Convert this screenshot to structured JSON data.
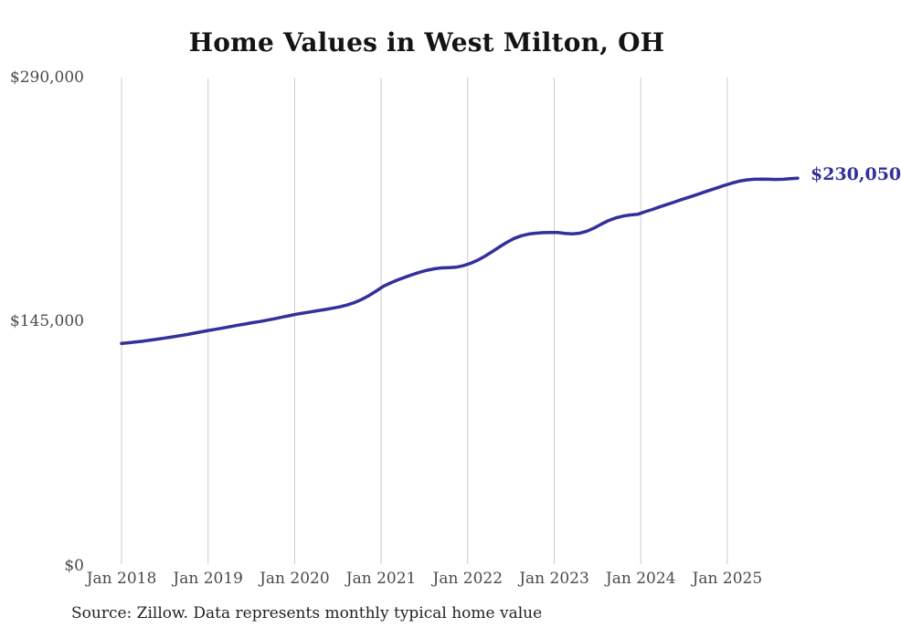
{
  "page": {
    "title": "Home Values in West Milton, OH",
    "source_note": "Source: Zillow. Data represents monthly typical home value"
  },
  "chart_data": {
    "type": "line",
    "title": "Home Values in West Milton, OH",
    "series_name": "Monthly typical home value",
    "line_color": "#34309b",
    "grid_color": "#cccccc",
    "end_label": "$230,050",
    "end_value": 230050,
    "ylim": [
      0,
      290000
    ],
    "grid": "vertical-only",
    "legend": "none",
    "y_ticks": [
      {
        "value": 0,
        "label": "$0"
      },
      {
        "value": 145000,
        "label": "$145,000"
      },
      {
        "value": 290000,
        "label": "$290,000"
      }
    ],
    "x_tick_labels": [
      "Jan 2018",
      "Jan 2019",
      "Jan 2020",
      "Jan 2021",
      "Jan 2022",
      "Jan 2023",
      "Jan 2024",
      "Jan 2025"
    ],
    "x": [
      "2018-01",
      "2018-02",
      "2018-03",
      "2018-04",
      "2018-05",
      "2018-06",
      "2018-07",
      "2018-08",
      "2018-09",
      "2018-10",
      "2018-11",
      "2018-12",
      "2019-01",
      "2019-02",
      "2019-03",
      "2019-04",
      "2019-05",
      "2019-06",
      "2019-07",
      "2019-08",
      "2019-09",
      "2019-10",
      "2019-11",
      "2019-12",
      "2020-01",
      "2020-02",
      "2020-03",
      "2020-04",
      "2020-05",
      "2020-06",
      "2020-07",
      "2020-08",
      "2020-09",
      "2020-10",
      "2020-11",
      "2020-12",
      "2021-01",
      "2021-02",
      "2021-03",
      "2021-04",
      "2021-05",
      "2021-06",
      "2021-07",
      "2021-08",
      "2021-09",
      "2021-10",
      "2021-11",
      "2021-12",
      "2022-01",
      "2022-02",
      "2022-03",
      "2022-04",
      "2022-05",
      "2022-06",
      "2022-07",
      "2022-08",
      "2022-09",
      "2022-10",
      "2022-11",
      "2022-12",
      "2023-01",
      "2023-02",
      "2023-03",
      "2023-04",
      "2023-05",
      "2023-06",
      "2023-07",
      "2023-08",
      "2023-09",
      "2023-10",
      "2023-11",
      "2023-12",
      "2024-01",
      "2024-02",
      "2024-03",
      "2024-04",
      "2024-05",
      "2024-06",
      "2024-07",
      "2024-08",
      "2024-09",
      "2024-10",
      "2024-11",
      "2024-12",
      "2025-01",
      "2025-02",
      "2025-03",
      "2025-04",
      "2025-05",
      "2025-06",
      "2025-07",
      "2025-08",
      "2025-09",
      "2025-10"
    ],
    "values": [
      132000,
      132400,
      132900,
      133400,
      134000,
      134600,
      135200,
      135900,
      136600,
      137300,
      138100,
      138900,
      139700,
      140400,
      141200,
      142000,
      142800,
      143500,
      144300,
      145000,
      145800,
      146600,
      147500,
      148400,
      149300,
      150000,
      150700,
      151400,
      152100,
      152900,
      153700,
      154800,
      156200,
      158000,
      160300,
      163000,
      165900,
      167900,
      169700,
      171300,
      172800,
      174200,
      175400,
      176300,
      176800,
      177000,
      177200,
      178100,
      179500,
      181400,
      183800,
      186500,
      189300,
      192000,
      194300,
      195900,
      196900,
      197400,
      197700,
      197800,
      197800,
      197300,
      197000,
      197400,
      198600,
      200500,
      202800,
      204900,
      206500,
      207600,
      208200,
      208600,
      210100,
      211500,
      213000,
      214400,
      215800,
      217300,
      218700,
      220100,
      221600,
      223000,
      224400,
      225900,
      227200,
      228300,
      229000,
      229400,
      229500,
      229400,
      229300,
      229400,
      229700,
      230050
    ]
  }
}
